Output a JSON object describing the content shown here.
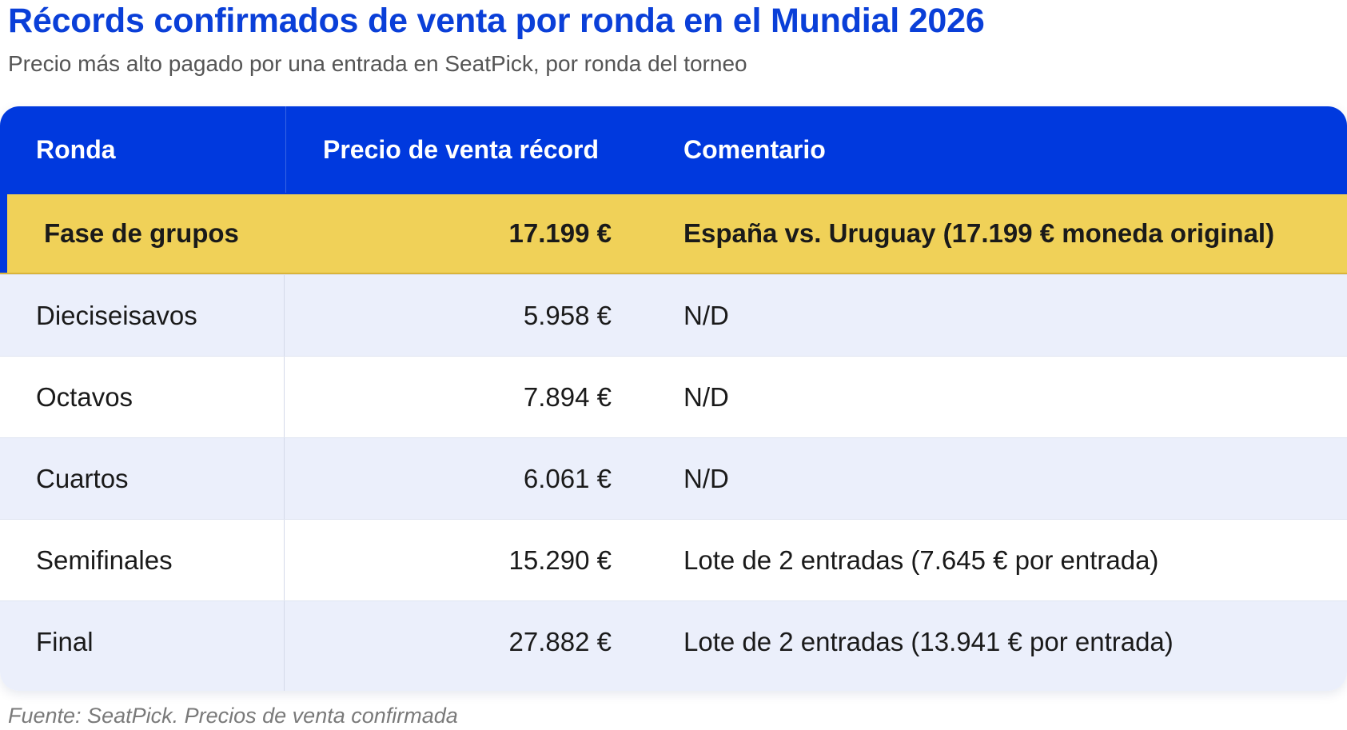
{
  "title": "Récords confirmados de venta por ronda en el Mundial 2026",
  "subtitle": "Precio más alto pagado por una entrada en SeatPick, por ronda del torneo",
  "source": "Fuente: SeatPick. Precios de venta confirmada",
  "colors": {
    "title": "#0a3fd8",
    "header_bg": "#0039de",
    "highlight_bg": "#f0d158",
    "alt_row_bg": "#ebeffb"
  },
  "chart_data": {
    "type": "table",
    "title": "Récords confirmados de venta por ronda en el Mundial 2026",
    "subtitle": "Precio más alto pagado por una entrada en SeatPick, por ronda del torneo",
    "columns": [
      "Ronda",
      "Precio de venta récord",
      "Comentario"
    ],
    "rows": [
      [
        "Fase de grupos",
        "17.199 €",
        "España vs. Uruguay (17.199 € moneda original)"
      ],
      [
        "Dieciseisavos",
        "5.958 €",
        "N/D"
      ],
      [
        "Octavos",
        "7.894 €",
        "N/D"
      ],
      [
        "Cuartos",
        "6.061 €",
        "N/D"
      ],
      [
        "Semifinales",
        "15.290 €",
        "Lote de 2 entradas (7.645 € por entrada)"
      ],
      [
        "Final",
        "27.882 €",
        "Lote de 2 entradas (13.941 € por entrada)"
      ]
    ],
    "values_eur": [
      17199,
      5958,
      7894,
      6061,
      15290,
      27882
    ],
    "highlighted_row": 0
  }
}
